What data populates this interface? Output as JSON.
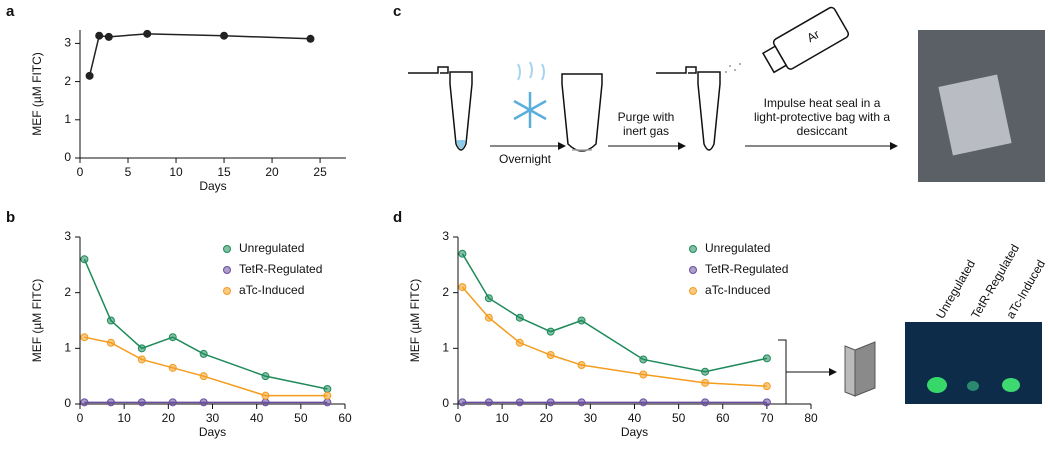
{
  "panel_labels": [
    "a",
    "b",
    "c",
    "d"
  ],
  "chart_data": [
    {
      "type": "line",
      "x": [
        1,
        2,
        3,
        7,
        15,
        24
      ],
      "values": [
        2.15,
        3.2,
        3.17,
        3.25,
        3.2,
        3.12
      ],
      "color": "#222222",
      "xlim": [
        0,
        27.7
      ],
      "xticks": [
        0,
        5,
        10,
        15,
        20,
        25
      ],
      "ylim": [
        0,
        3.35
      ],
      "yticks": [
        0,
        1,
        2,
        3
      ],
      "xlabel": "Days",
      "ylabel": "MEF (µM FITC)"
    },
    {
      "type": "line",
      "x": [
        1,
        7,
        14,
        21,
        28,
        42,
        56
      ],
      "series": [
        {
          "name": "Unregulated",
          "color": "#1e8a5a",
          "values": [
            2.6,
            1.5,
            1.0,
            1.2,
            0.9,
            0.5,
            0.27
          ]
        },
        {
          "name": "TetR-Regulated",
          "color": "#6a4ea0",
          "values": [
            0.03,
            0.03,
            0.03,
            0.03,
            0.03,
            0.03,
            0.03
          ]
        },
        {
          "name": "aTc-Induced",
          "color": "#f39c1e",
          "values": [
            1.2,
            1.1,
            0.8,
            0.65,
            0.5,
            0.15,
            0.15
          ]
        }
      ],
      "xlim": [
        0,
        60
      ],
      "xticks": [
        0,
        10,
        20,
        30,
        40,
        50,
        60
      ],
      "ylim": [
        0,
        3
      ],
      "yticks": [
        0,
        1,
        2,
        3
      ],
      "xlabel": "Days",
      "ylabel": "MEF (µM FITC)",
      "legend": "upper right"
    },
    {
      "type": "line",
      "x": [
        1,
        7,
        14,
        21,
        28,
        42,
        56,
        70
      ],
      "series": [
        {
          "name": "Unregulated",
          "color": "#1e8a5a",
          "values": [
            2.7,
            1.9,
            1.55,
            1.3,
            1.5,
            0.8,
            0.58,
            0.82
          ]
        },
        {
          "name": "TetR-Regulated",
          "color": "#6a4ea0",
          "values": [
            0.03,
            0.03,
            0.03,
            0.03,
            0.03,
            0.03,
            0.03,
            0.03
          ]
        },
        {
          "name": "aTc-Induced",
          "color": "#f39c1e",
          "values": [
            2.1,
            1.55,
            1.1,
            0.88,
            0.7,
            0.53,
            0.38,
            0.32
          ]
        }
      ],
      "xlim": [
        0,
        80
      ],
      "xticks": [
        0,
        10,
        20,
        30,
        40,
        50,
        60,
        70,
        80
      ],
      "ylim": [
        0,
        3
      ],
      "yticks": [
        0,
        1,
        2,
        3
      ],
      "xlabel": "Days",
      "ylabel": "MEF (µM FITC)",
      "legend": "upper right"
    }
  ],
  "diagram": {
    "steps": [
      "Overnight",
      "Purge with inert gas",
      "Impulse heat seal in a light-protective bag with a desiccant"
    ],
    "gas_label": "Ar",
    "tube_labels": [
      "Unregulated",
      "TetR-Regulated",
      "aTc-Induced"
    ]
  }
}
